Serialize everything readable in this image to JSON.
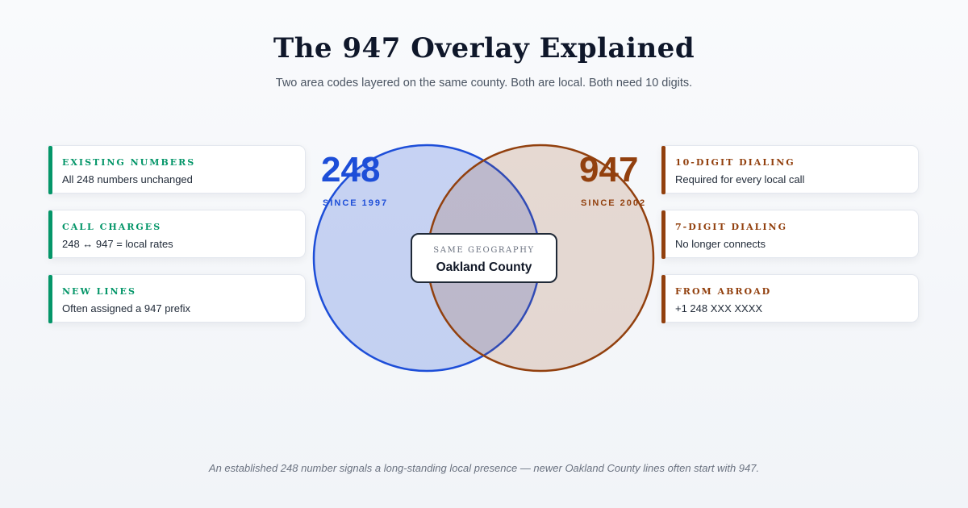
{
  "header": {
    "title": "The 947 Overlay Explained",
    "subtitle": "Two area codes layered on the same county. Both are local. Both need 10 digits."
  },
  "left_cards": [
    {
      "label": "Existing numbers",
      "text": "All 248 numbers unchanged"
    },
    {
      "label": "Call charges",
      "text": "248 ↔ 947 = local rates"
    },
    {
      "label": "New lines",
      "text": "Often assigned a 947 prefix"
    }
  ],
  "right_cards": [
    {
      "label": "10-digit dialing",
      "text": "Required for every local call"
    },
    {
      "label": "7-digit dialing",
      "text": "No longer connects"
    },
    {
      "label": "From abroad",
      "text": "+1 248 XXX XXXX"
    }
  ],
  "venn": {
    "left": {
      "code": "248",
      "since": "SINCE 1997",
      "color": "#1d4ed8"
    },
    "right": {
      "code": "947",
      "since": "SINCE 2002",
      "color": "#92400e"
    },
    "overlap": {
      "label": "Same geography",
      "value": "Oakland County"
    }
  },
  "footer": "An established 248 number signals a long-standing local presence — newer Oakland County lines often start with 947."
}
